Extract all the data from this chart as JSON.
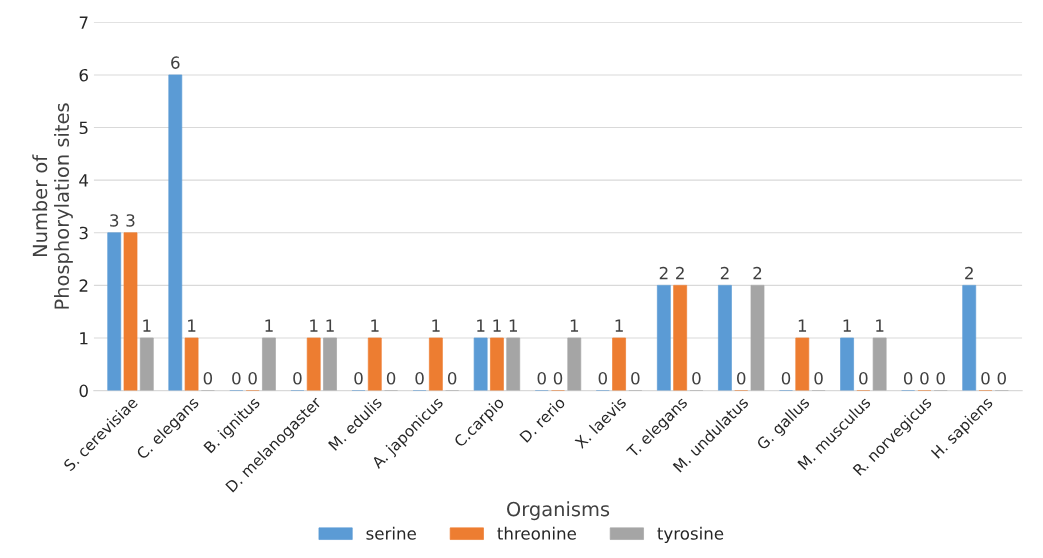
{
  "chart_data": {
    "type": "bar",
    "xlabel": "Organisms",
    "ylabel": "Number of\nPhosphorylation sites",
    "categories": [
      "S. cerevisiae",
      "C. elegans",
      "B. ignitus",
      "D. melanogaster",
      "M. edulis",
      "A. japonicus",
      "C.carpio",
      "D. rerio",
      "X. laevis",
      "T. elegans",
      "M. undulatus",
      "G. gallus",
      "M. musculus",
      "R. norvegicus",
      "H. sapiens"
    ],
    "series": [
      {
        "name": "serine",
        "color": "#5b9bd5",
        "values": [
          3,
          6,
          0,
          0,
          0,
          0,
          1,
          0,
          0,
          2,
          2,
          0,
          1,
          0,
          2
        ]
      },
      {
        "name": "threonine",
        "color": "#ed7d31",
        "values": [
          3,
          1,
          0,
          1,
          1,
          1,
          1,
          0,
          1,
          2,
          0,
          1,
          0,
          0,
          0
        ]
      },
      {
        "name": "tyrosine",
        "color": "#a5a5a5",
        "values": [
          1,
          0,
          1,
          1,
          0,
          0,
          1,
          1,
          0,
          0,
          2,
          0,
          1,
          0,
          0
        ]
      }
    ],
    "ylim": [
      0,
      7
    ],
    "yticks": [
      0,
      1,
      2,
      3,
      4,
      5,
      6,
      7
    ],
    "grid": "y",
    "legend": "bottom",
    "data_labels": true
  }
}
